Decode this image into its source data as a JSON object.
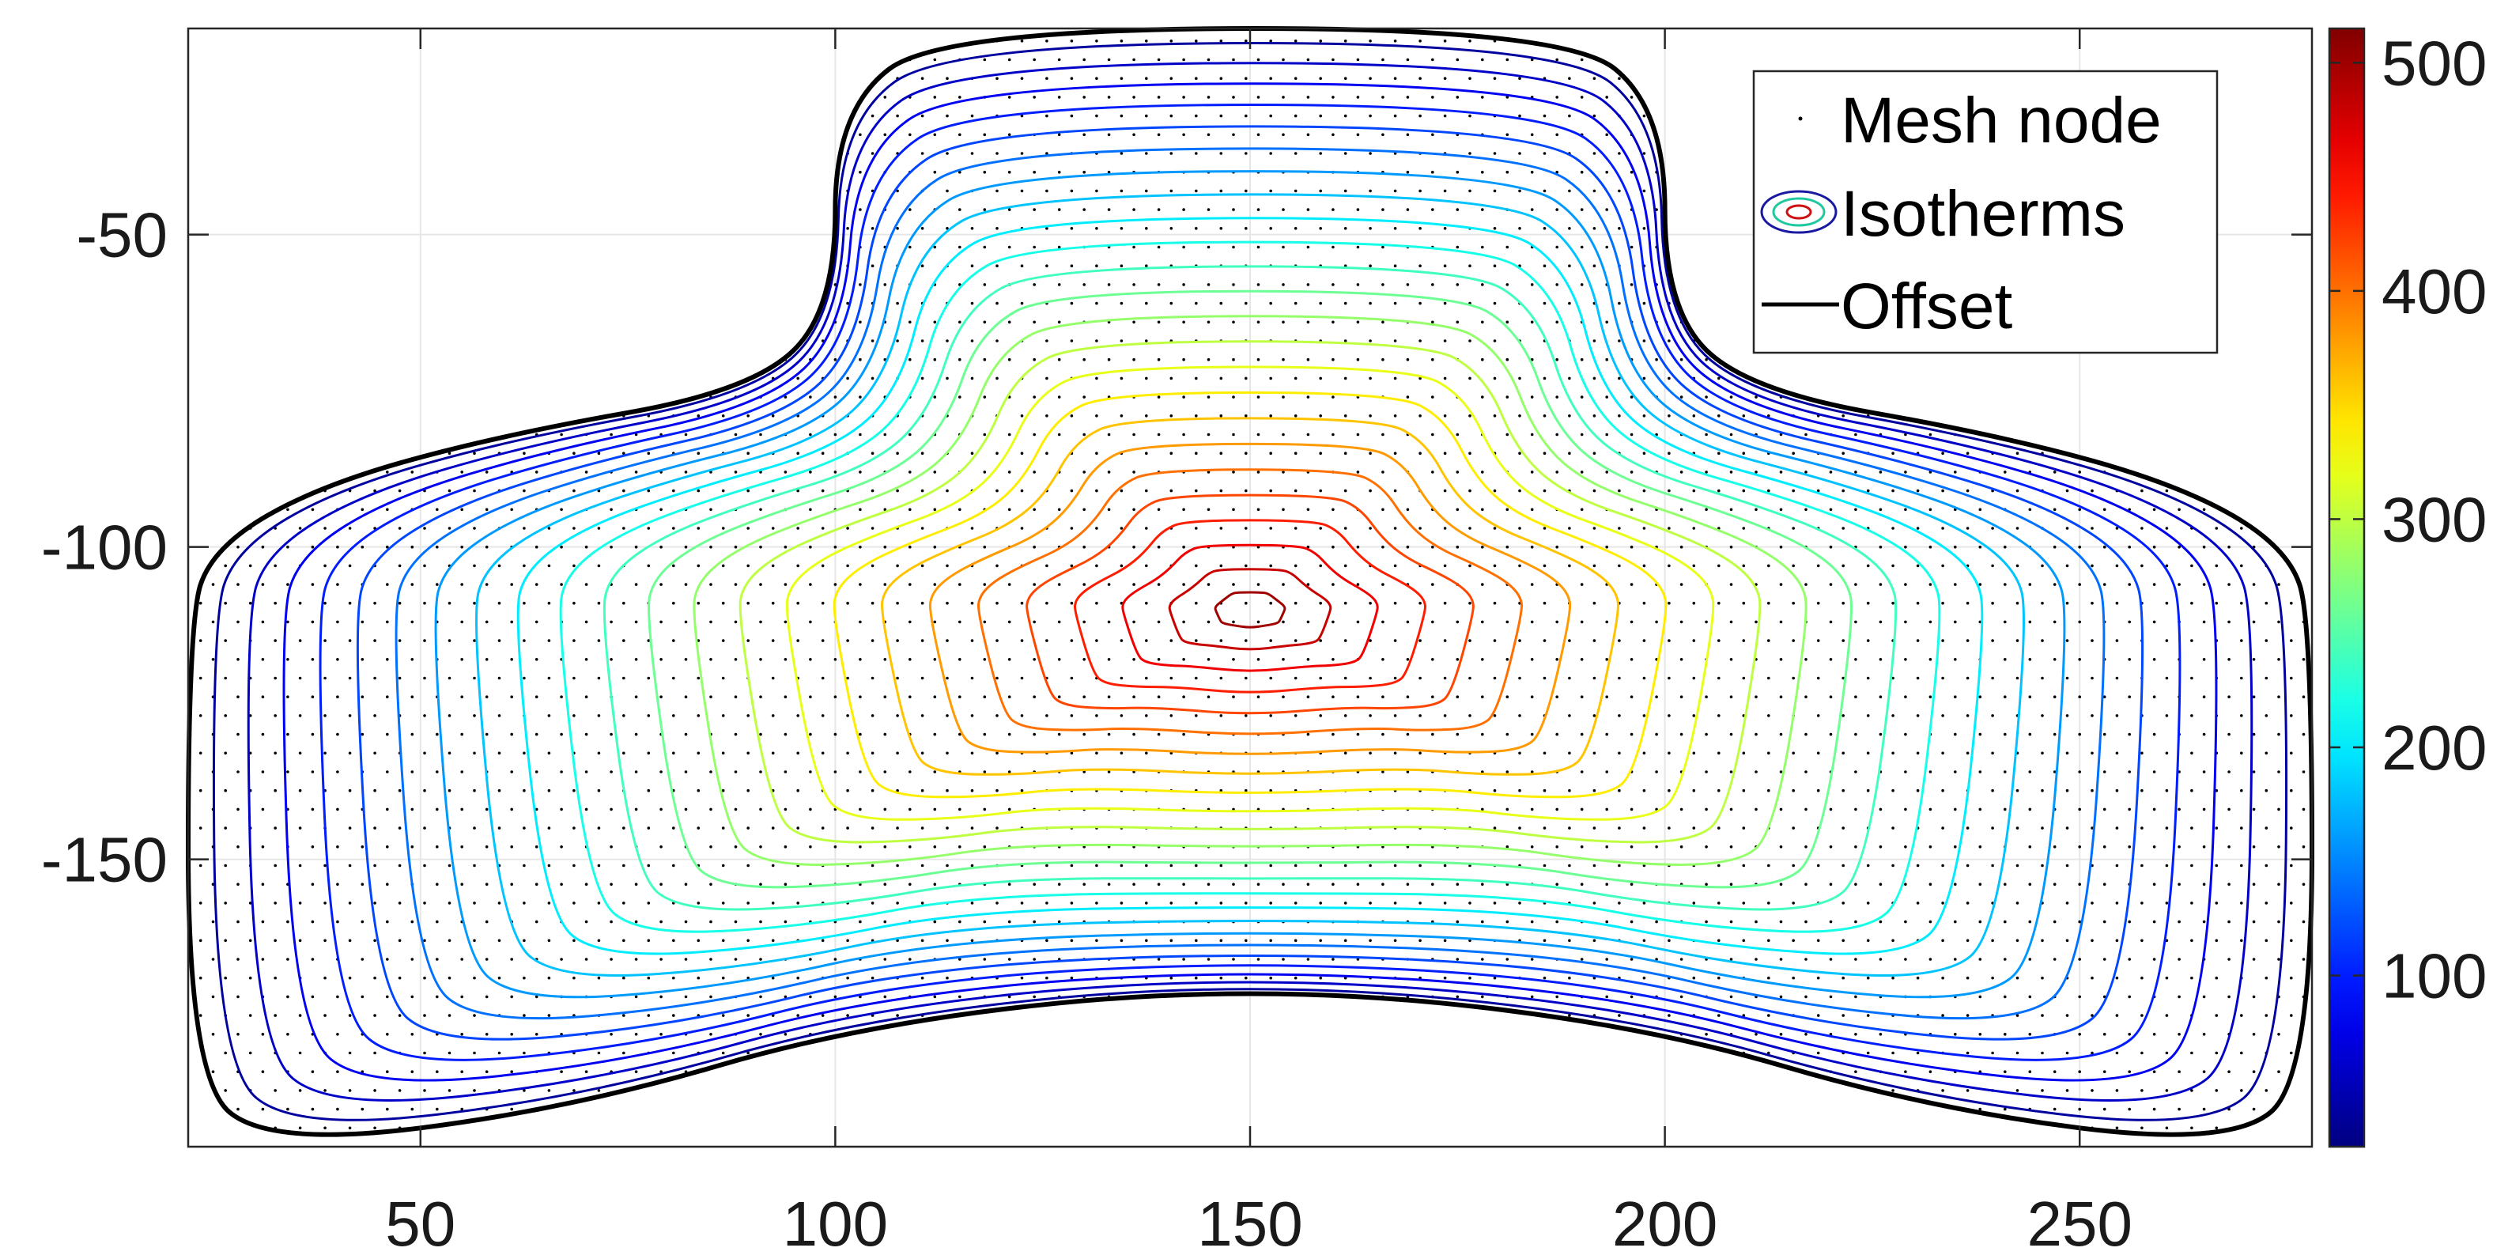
{
  "chart_data": {
    "type": "contour",
    "title": "",
    "xlabel": "",
    "ylabel": "",
    "xlim": [
      22,
      278
    ],
    "ylim": [
      -196,
      -17
    ],
    "grid": true,
    "x_ticks": [
      "50",
      "100",
      "150",
      "200",
      "250"
    ],
    "x_tick_values": [
      50,
      100,
      150,
      200,
      250
    ],
    "y_ticks": [
      "-50",
      "-100",
      "-150"
    ],
    "y_tick_values": [
      -50,
      -100,
      -150
    ],
    "colorbar": {
      "colormap": "jet",
      "range": [
        25,
        515
      ],
      "ticks": [
        "100",
        "200",
        "300",
        "400",
        "500"
      ],
      "tick_values": [
        100,
        200,
        300,
        400,
        500
      ]
    },
    "offset_outline": [
      [
        113,
        -17
      ],
      [
        188,
        -17
      ],
      [
        200,
        -30
      ],
      [
        200,
        -62
      ],
      [
        210,
        -75
      ],
      [
        240,
        -82
      ],
      [
        262,
        -90
      ],
      [
        275,
        -100
      ],
      [
        278,
        -112
      ],
      [
        278,
        -185
      ],
      [
        268,
        -196
      ],
      [
        232,
        -190
      ],
      [
        196,
        -176
      ],
      [
        150,
        -170
      ],
      [
        104,
        -176
      ],
      [
        68,
        -190
      ],
      [
        32,
        -196
      ],
      [
        22,
        -185
      ],
      [
        22,
        -112
      ],
      [
        25,
        -100
      ],
      [
        38,
        -90
      ],
      [
        60,
        -82
      ],
      [
        90,
        -75
      ],
      [
        100,
        -62
      ],
      [
        100,
        -30
      ],
      [
        113,
        -17
      ]
    ],
    "isotherm_levels": [
      40,
      60,
      80,
      100,
      120,
      140,
      160,
      180,
      200,
      220,
      240,
      260,
      280,
      300,
      320,
      340,
      360,
      380,
      400,
      420,
      440,
      460,
      480,
      500
    ],
    "peak": {
      "x": 150,
      "y": -110,
      "value": 515
    },
    "mesh_spacing": 3
  },
  "legend": {
    "position": "top-right",
    "items": [
      {
        "label": "Mesh node",
        "symbol": "dot"
      },
      {
        "label": "Isotherms",
        "symbol": "ellipses"
      },
      {
        "label": "Offset",
        "symbol": "line"
      }
    ]
  },
  "colors": {
    "offset_line": "#000000",
    "mesh_node": "#000000",
    "grid": "#e6e6e6",
    "axis": "#262626"
  }
}
